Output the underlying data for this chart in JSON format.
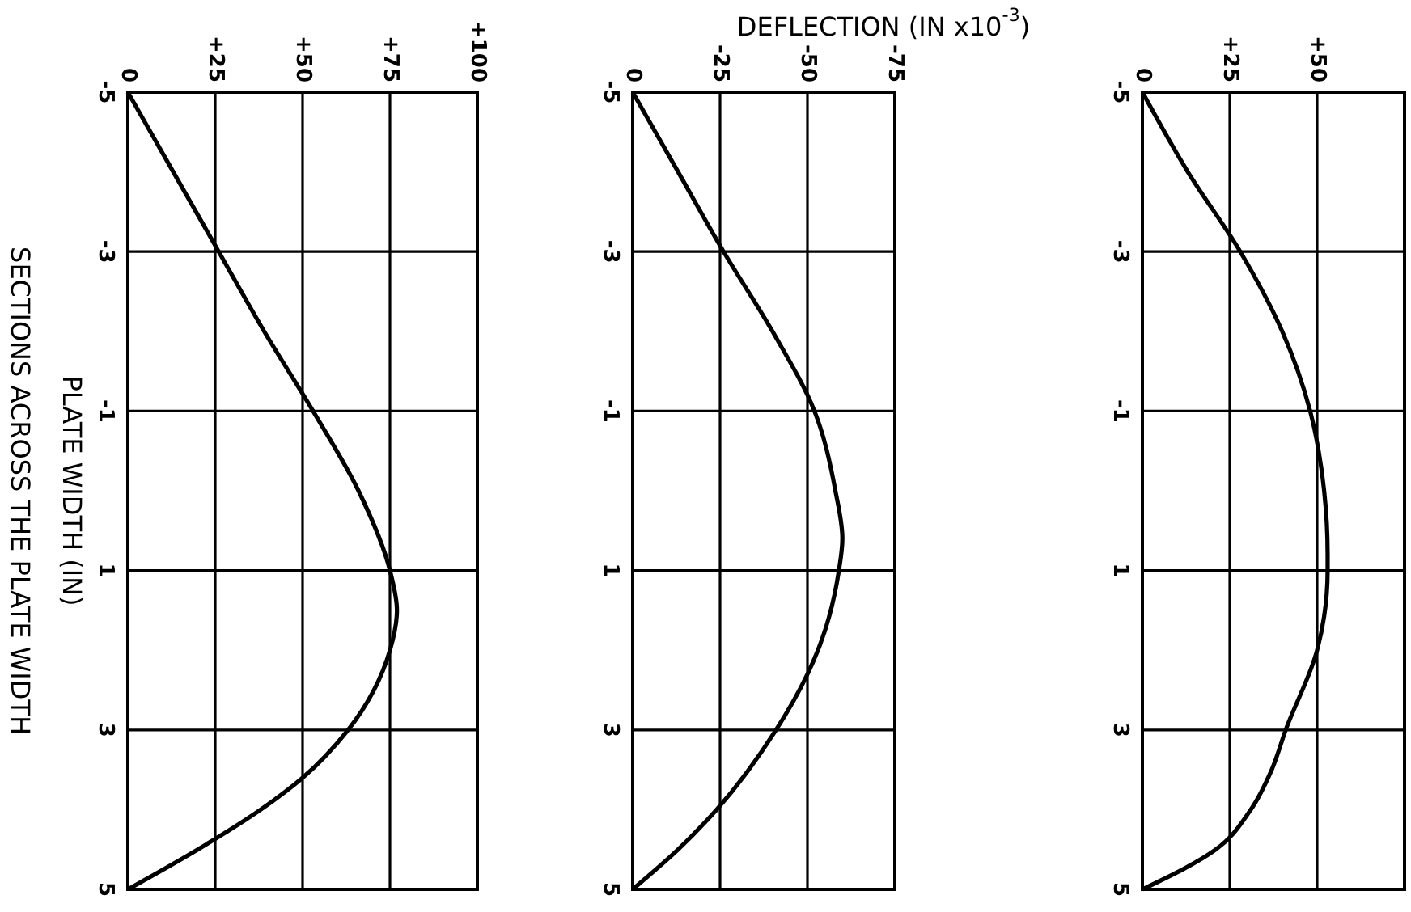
{
  "chart_data": [
    {
      "type": "line",
      "ylabel": "PLATE WIDTH (IN)",
      "annotations": [
        "SECTIONS ACROSS THE PLATE WIDTH"
      ],
      "ylim": [
        5,
        -5
      ],
      "yticks": [
        -5,
        -3,
        -1,
        1,
        3,
        5
      ],
      "xlim": [
        0,
        100
      ],
      "xticks": [
        0,
        {
          "value": 25,
          "label": "+25"
        },
        {
          "value": 50,
          "label": "+50"
        },
        {
          "value": 75,
          "label": "+75"
        },
        {
          "value": 100,
          "label": "+100"
        }
      ],
      "grid": true,
      "color": "#000000",
      "values": [
        -5,
        -4,
        -3,
        -2,
        -1,
        0,
        1,
        1.5,
        2,
        3,
        3.6,
        4,
        4.5,
        5
      ],
      "x": [
        0,
        13,
        26,
        39,
        53,
        66,
        75,
        77,
        75,
        63,
        50,
        38,
        20,
        0
      ]
    },
    {
      "type": "line",
      "xlabel": "DEFLECTION (IN x10$^{-3}$)",
      "ylim": [
        5,
        -5
      ],
      "yticks": [
        -5,
        -3,
        -1,
        1,
        3,
        5
      ],
      "xlim": [
        0,
        -75
      ],
      "xticks": [
        0,
        -25,
        -50,
        -75
      ],
      "grid": true,
      "color": "#000000",
      "values": [
        -5,
        -4,
        -3,
        -2,
        -1,
        0,
        0.6,
        1,
        2,
        2.3,
        3,
        4,
        4.5,
        5
      ],
      "x": [
        0,
        -13,
        -26,
        -40,
        -52,
        -58,
        -60,
        -59,
        -53,
        -50,
        -41,
        -24,
        -13,
        0
      ]
    },
    {
      "type": "line",
      "ylim": [
        5,
        -5
      ],
      "yticks": [
        -5,
        -3,
        -1,
        1,
        3,
        5
      ],
      "xlim": [
        0,
        75
      ],
      "xticks": [
        0,
        {
          "value": 25,
          "label": "+25"
        },
        {
          "value": 50,
          "label": "+50"
        }
      ],
      "grid": true,
      "color": "#000000",
      "values": [
        -5,
        -4,
        -3,
        -2,
        -1,
        0,
        0.8,
        1,
        2,
        3,
        3.5,
        4,
        4.5,
        5
      ],
      "x": [
        0,
        13,
        28,
        40,
        48,
        52,
        53,
        53,
        50,
        41,
        37,
        31,
        21,
        0
      ]
    }
  ]
}
